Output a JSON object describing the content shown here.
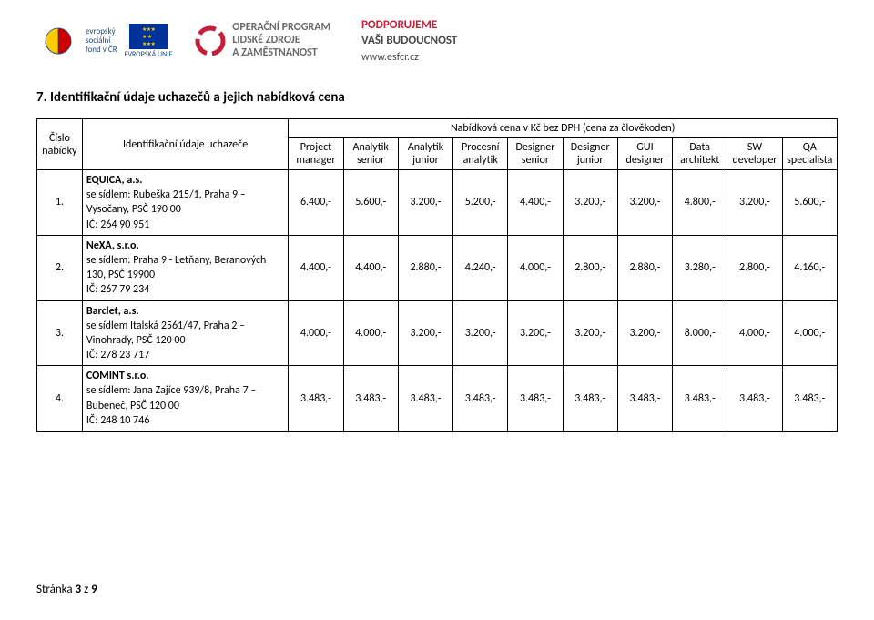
{
  "header": {
    "esf": {
      "line1": "evropský",
      "line2": "sociální",
      "line3": "fond v ČR",
      "line4": "EVROPSKÁ UNIE"
    },
    "op": {
      "line1": "OPERAČNÍ PROGRAM",
      "line2": "LIDSKÉ ZDROJE",
      "line3": "A ZAMĚSTNANOST"
    },
    "support": {
      "line1": "PODPORUJEME",
      "line2": "VAŠI BUDOUCNOST",
      "url": "www.esfcr.cz"
    }
  },
  "section_title": "7. Identifikační údaje uchazečů a jejich nabídková cena",
  "table": {
    "col_num_top": "Číslo",
    "col_num_bottom": "nabídky",
    "col_ident": "Identifikační údaje uchazeče",
    "price_header": "Nabídková cena v Kč bez DPH (cena za člověkoden)",
    "roles": [
      "Project manager",
      "Analytik senior",
      "Analytik junior",
      "Procesní analytik",
      "Designer senior",
      "Designer junior",
      "GUI designer",
      "Data architekt",
      "SW developer",
      "QA specialista"
    ]
  },
  "rows": [
    {
      "n": "1.",
      "name": "EQUICA, a.s.",
      "addr": "se sídlem: Rubeška 215/1, Praha 9 – Vysočany, PSČ 190 00",
      "ic": "IČ: 264 90 951",
      "vals": [
        "6.400,-",
        "5.600,-",
        "3.200,-",
        "5.200,-",
        "4.400,-",
        "3.200,-",
        "3.200,-",
        "4.800,-",
        "3.200,-",
        "5.600,-"
      ]
    },
    {
      "n": "2.",
      "name": "NeXA, s.r.o.",
      "addr": "se sídlem: Praha 9 - Letňany, Beranových 130, PSČ 19900",
      "ic": "IČ: 267 79 234",
      "vals": [
        "4.400,-",
        "4.400,-",
        "2.880,-",
        "4.240,-",
        "4.000,-",
        "2.800,-",
        "2.880,-",
        "3.280,-",
        "2.800,-",
        "4.160,-"
      ]
    },
    {
      "n": "3.",
      "name": "Barclet, a.s.",
      "addr": "se sídlem Italská 2561/47, Praha 2 – Vinohrady, PSČ 120 00",
      "ic": "IČ: 278 23 717",
      "vals": [
        "4.000,-",
        "4.000,-",
        "3.200,-",
        "3.200,-",
        "3.200,-",
        "3.200,-",
        "3.200,-",
        "8.000,-",
        "4.000,-",
        "4.000,-"
      ]
    },
    {
      "n": "4.",
      "name": "COMINT s.r.o.",
      "addr": "se sídlem: Jana Zajíce 939/8, Praha 7 – Bubeneč, PSČ 120 00",
      "ic": "IČ: 248 10 746",
      "vals": [
        "3.483,-",
        "3.483,-",
        "3.483,-",
        "3.483,-",
        "3.483,-",
        "3.483,-",
        "3.483,-",
        "3.483,-",
        "3.483,-",
        "3.483,-"
      ]
    }
  ],
  "footer": {
    "page_label": "Stránka",
    "page_num": "3",
    "page_sep": "z",
    "page_total": "9"
  },
  "colors": {
    "esf_blue": "#1a4a7a",
    "eu_bg": "#003399",
    "eu_star": "#ffcc00",
    "op_gray": "#6a6a6a",
    "op_red": "#c41e3a",
    "support_red": "#c41e3a",
    "support_gray": "#4a4a4a",
    "border": "#000000"
  }
}
